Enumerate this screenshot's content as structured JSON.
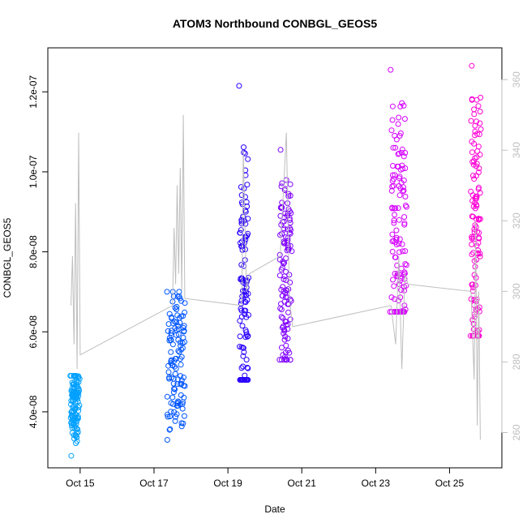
{
  "chart_data": {
    "type": "scatter",
    "title": "ATOM3 Northbound CONBGL_GEOS5",
    "xlabel": "Date",
    "ylabel": "CONBGL_GEOS5",
    "x_axis": {
      "type": "date",
      "range": [
        "2016-10-14T03:00",
        "2016-10-26T10:00"
      ],
      "ticks": [
        {
          "date": "2016-10-15T00:00",
          "label": "Oct 15"
        },
        {
          "date": "2016-10-17T00:00",
          "label": "Oct 17"
        },
        {
          "date": "2016-10-19T00:00",
          "label": "Oct 19"
        },
        {
          "date": "2016-10-21T00:00",
          "label": "Oct 21"
        },
        {
          "date": "2016-10-23T00:00",
          "label": "Oct 23"
        },
        {
          "date": "2016-10-25T00:00",
          "label": "Oct 25"
        }
      ]
    },
    "y_axis_left": {
      "range": [
        2.6e-08,
        1.31e-07
      ],
      "ticks": [
        {
          "value": 4e-08,
          "label": "4.0e-08"
        },
        {
          "value": 6e-08,
          "label": "6.0e-08"
        },
        {
          "value": 8e-08,
          "label": "8.0e-08"
        },
        {
          "value": 1e-07,
          "label": "1.0e-07"
        },
        {
          "value": 1.2e-07,
          "label": "1.2e-07"
        }
      ]
    },
    "y_axis_right": {
      "range": [
        250,
        369
      ],
      "color": "#bebebe",
      "ticks": [
        {
          "value": 260,
          "label": "260"
        },
        {
          "value": 280,
          "label": "280"
        },
        {
          "value": 300,
          "label": "300"
        },
        {
          "value": 320,
          "label": "320"
        },
        {
          "value": 340,
          "label": "340"
        },
        {
          "value": 360,
          "label": "360"
        }
      ]
    },
    "grid": false,
    "series": [
      {
        "color": "#00a0ff",
        "x_start": "2016-10-14T18:00",
        "x_end": "2016-10-14T23:00",
        "y_min": 2.9e-08,
        "y_max": 4.9e-08,
        "y_center": 4.2e-08
      },
      {
        "color": "#0055ff",
        "x_start": "2016-10-17T09:00",
        "x_end": "2016-10-17T20:00",
        "y_min": 3.3e-08,
        "y_max": 7e-08,
        "y_center": 5.3e-08
      },
      {
        "color": "#2a00ff",
        "x_start": "2016-10-19T08:00",
        "x_end": "2016-10-19T13:00",
        "y_min": 4.8e-08,
        "y_max": 1.215e-07,
        "y_center": 7e-08
      },
      {
        "color": "#8000ff",
        "x_start": "2016-10-20T10:00",
        "x_end": "2016-10-20T17:00",
        "y_min": 5.3e-08,
        "y_max": 1.055e-07,
        "y_center": 7.4e-08
      },
      {
        "color": "#d500ff",
        "x_start": "2016-10-23T10:00",
        "x_end": "2016-10-23T20:00",
        "y_min": 6.5e-08,
        "y_max": 1.255e-07,
        "y_center": 8.8e-08
      },
      {
        "color": "#ff00d5",
        "x_start": "2016-10-25T14:00",
        "x_end": "2016-10-25T20:00",
        "y_min": 5.9e-08,
        "y_max": 1.265e-07,
        "y_center": 8.6e-08
      }
    ],
    "secondary_line": {
      "color": "#bebebe",
      "axis": "right",
      "points": [
        [
          "2016-10-14T18:00",
          296
        ],
        [
          "2016-10-14T19:00",
          310
        ],
        [
          "2016-10-14T20:00",
          285
        ],
        [
          "2016-10-14T21:00",
          325
        ],
        [
          "2016-10-14T22:00",
          278
        ],
        [
          "2016-10-14T23:00",
          345
        ],
        [
          "2016-10-15T00:00",
          282
        ],
        [
          "2016-10-17T12:00",
          296
        ],
        [
          "2016-10-17T13:00",
          318
        ],
        [
          "2016-10-17T14:00",
          302
        ],
        [
          "2016-10-17T15:00",
          330
        ],
        [
          "2016-10-17T16:00",
          305
        ],
        [
          "2016-10-17T17:00",
          335
        ],
        [
          "2016-10-17T18:00",
          300
        ],
        [
          "2016-10-17T19:00",
          350
        ],
        [
          "2016-10-17T20:00",
          298
        ],
        [
          "2016-10-19T09:00",
          296
        ],
        [
          "2016-10-19T10:00",
          340
        ],
        [
          "2016-10-19T12:00",
          300
        ],
        [
          "2016-10-19T14:00",
          305
        ],
        [
          "2016-10-20T10:00",
          310
        ],
        [
          "2016-10-20T14:00",
          345
        ],
        [
          "2016-10-20T16:00",
          298
        ],
        [
          "2016-10-20T18:00",
          290
        ],
        [
          "2016-10-23T10:00",
          296
        ],
        [
          "2016-10-23T13:00",
          285
        ],
        [
          "2016-10-23T15:00",
          310
        ],
        [
          "2016-10-23T17:00",
          278
        ],
        [
          "2016-10-23T19:00",
          305
        ],
        [
          "2016-10-23T21:00",
          302
        ],
        [
          "2016-10-25T14:00",
          300
        ],
        [
          "2016-10-25T16:00",
          275
        ],
        [
          "2016-10-25T17:00",
          320
        ],
        [
          "2016-10-25T18:00",
          262
        ],
        [
          "2016-10-25T19:00",
          300
        ],
        [
          "2016-10-25T20:00",
          258
        ]
      ]
    }
  }
}
